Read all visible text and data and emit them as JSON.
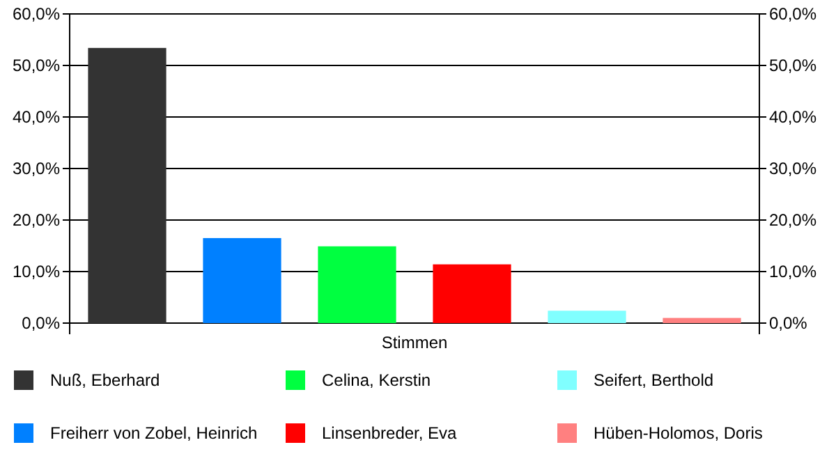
{
  "chart_data": {
    "type": "bar",
    "categories": [
      "Stimmen"
    ],
    "series": [
      {
        "name": "Nuß, Eberhard",
        "color": "#333333",
        "values": [
          53.4
        ]
      },
      {
        "name": "Freiherr von Zobel, Heinrich",
        "color": "#0080ff",
        "values": [
          16.5
        ]
      },
      {
        "name": "Celina, Kerstin",
        "color": "#00ff40",
        "values": [
          14.9
        ]
      },
      {
        "name": "Linsenbreder, Eva",
        "color": "#ff0000",
        "values": [
          11.4
        ]
      },
      {
        "name": "Seifert, Berthold",
        "color": "#80ffff",
        "values": [
          2.4
        ]
      },
      {
        "name": "Hüben-Holomos, Doris",
        "color": "#ff8080",
        "values": [
          1.0
        ]
      }
    ],
    "ylim": [
      0,
      60
    ],
    "yticks": [
      {
        "value": 0,
        "label": "0,0%"
      },
      {
        "value": 10,
        "label": "10,0%"
      },
      {
        "value": 20,
        "label": "20,0%"
      },
      {
        "value": 30,
        "label": "30,0%"
      },
      {
        "value": 40,
        "label": "40,0%"
      },
      {
        "value": 50,
        "label": "50,0%"
      },
      {
        "value": 60,
        "label": "60,0%"
      }
    ],
    "grid": "y",
    "legend": "bottom"
  }
}
